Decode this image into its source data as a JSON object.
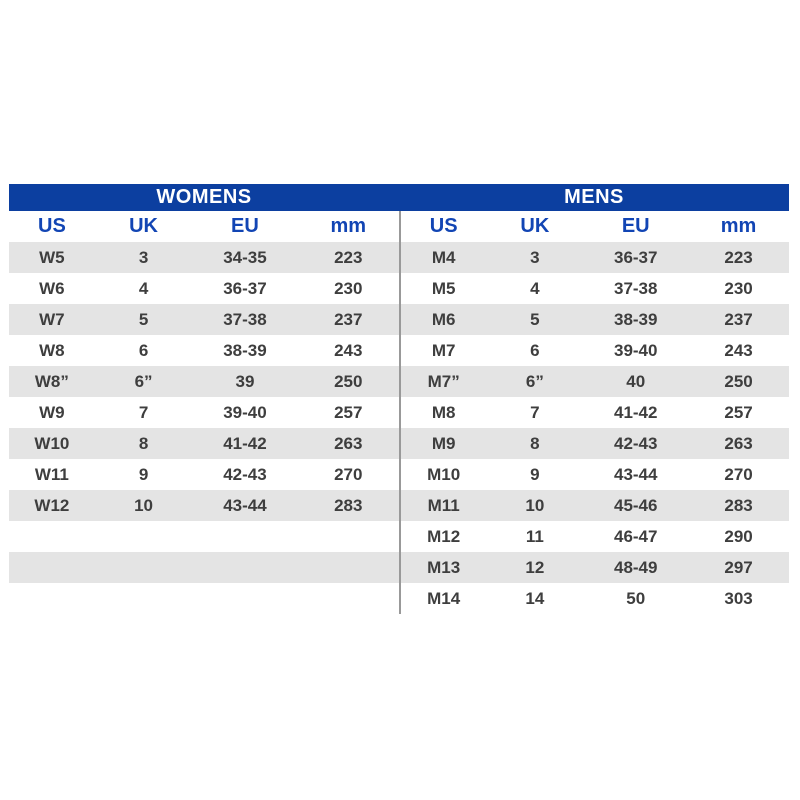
{
  "colors": {
    "title_bar_background": "#0c3fa0",
    "title_text": "#ffffff",
    "column_header_text": "#1245b4",
    "alternate_row_background": "#e4e4e4",
    "row_background": "#ffffff",
    "data_text": "#3e3e3e",
    "divider_line": "#999999"
  },
  "chart_data": [
    {
      "type": "table",
      "title": "WOMENS",
      "columns": [
        "US",
        "UK",
        "EU",
        "mm"
      ],
      "rows": [
        [
          "W5",
          "3",
          "34-35",
          "223"
        ],
        [
          "W6",
          "4",
          "36-37",
          "230"
        ],
        [
          "W7",
          "5",
          "37-38",
          "237"
        ],
        [
          "W8",
          "6",
          "38-39",
          "243"
        ],
        [
          "W8”",
          "6”",
          "39",
          "250"
        ],
        [
          "W9",
          "7",
          "39-40",
          "257"
        ],
        [
          "W10",
          "8",
          "41-42",
          "263"
        ],
        [
          "W11",
          "9",
          "42-43",
          "270"
        ],
        [
          "W12",
          "10",
          "43-44",
          "283"
        ]
      ],
      "empty_trailing_rows": 3
    },
    {
      "type": "table",
      "title": "MENS",
      "columns": [
        "US",
        "UK",
        "EU",
        "mm"
      ],
      "rows": [
        [
          "M4",
          "3",
          "36-37",
          "223"
        ],
        [
          "M5",
          "4",
          "37-38",
          "230"
        ],
        [
          "M6",
          "5",
          "38-39",
          "237"
        ],
        [
          "M7",
          "6",
          "39-40",
          "243"
        ],
        [
          "M7”",
          "6”",
          "40",
          "250"
        ],
        [
          "M8",
          "7",
          "41-42",
          "257"
        ],
        [
          "M9",
          "8",
          "42-43",
          "263"
        ],
        [
          "M10",
          "9",
          "43-44",
          "270"
        ],
        [
          "M11",
          "10",
          "45-46",
          "283"
        ],
        [
          "M12",
          "11",
          "46-47",
          "290"
        ],
        [
          "M13",
          "12",
          "48-49",
          "297"
        ],
        [
          "M14",
          "14",
          "50",
          "303"
        ]
      ],
      "empty_trailing_rows": 0
    }
  ]
}
